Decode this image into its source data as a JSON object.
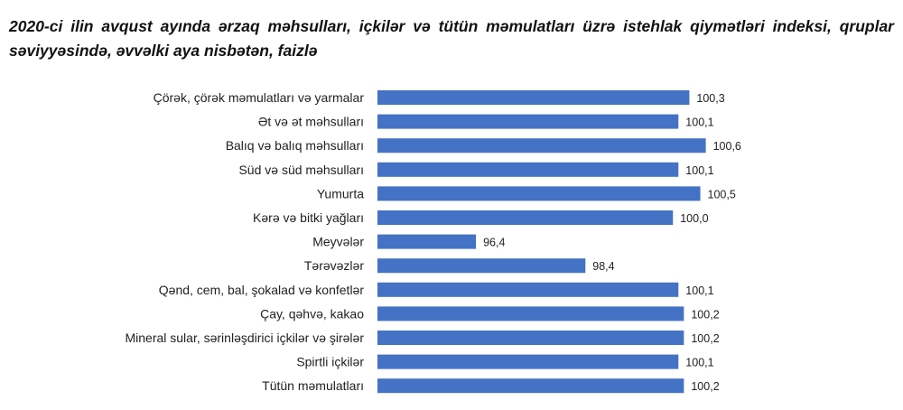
{
  "title": "2020-ci ilin avqust ayında ərzaq məhsulları, içkilər və tütün məmulatları üzrə istehlak qiymətləri indeksi, qruplar səviyyəsində, əvvəlki aya nisbətən, faizlə",
  "chart_data": {
    "type": "bar",
    "orientation": "horizontal",
    "categories": [
      "Çörək, çörək məmulatları  və yarmalar",
      "Ət və ət məhsulları",
      "Balıq və balıq məhsulları",
      "Süd və süd məhsulları",
      "Yumurta",
      "Kərə və bitki yağları",
      "Meyvələr",
      "Tərəvəzlər",
      "Qənd, cem, bal, şokalad və konfetlər",
      "Çay, qəhvə, kakao",
      "Mineral sular, sərinləşdirici içkilər və şirələr",
      "Spirtli içkilər",
      "Tütün məmulatları"
    ],
    "values": [
      100.3,
      100.1,
      100.6,
      100.1,
      100.5,
      100.0,
      96.4,
      98.4,
      100.1,
      100.2,
      100.2,
      100.1,
      100.2
    ],
    "value_labels": [
      "100,3",
      "100,1",
      "100,6",
      "100,1",
      "100,5",
      "100,0",
      "96,4",
      "98,4",
      "100,1",
      "100,2",
      "100,2",
      "100,1",
      "100,2"
    ],
    "xlim": [
      94.6,
      100.9
    ],
    "grid": false,
    "bar_color": "#4472C4"
  }
}
